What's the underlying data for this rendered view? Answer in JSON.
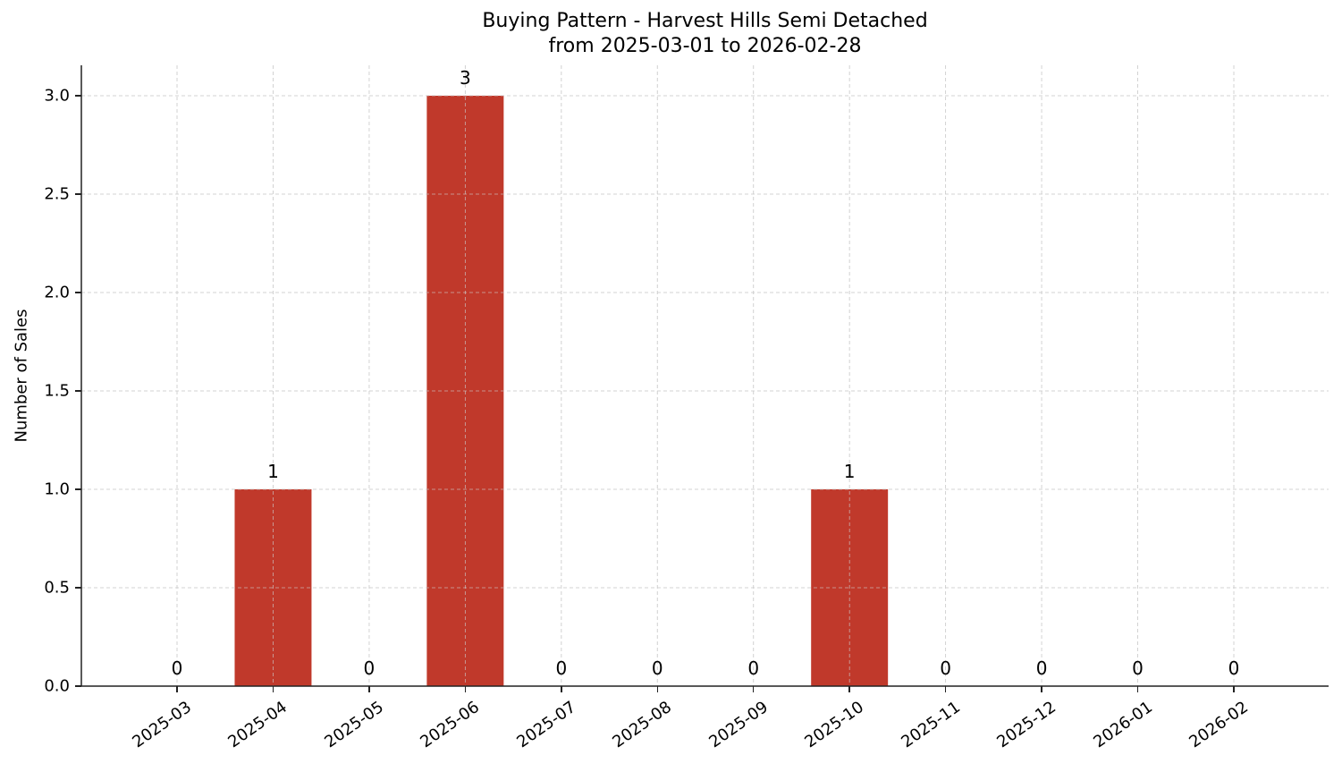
{
  "chart_data": {
    "type": "bar",
    "title": "Buying Pattern - Harvest Hills Semi Detached",
    "subtitle": "from 2025-03-01 to 2026-02-28",
    "xlabel": "",
    "ylabel": "Number of Sales",
    "categories": [
      "2025-03",
      "2025-04",
      "2025-05",
      "2025-06",
      "2025-07",
      "2025-08",
      "2025-09",
      "2025-10",
      "2025-11",
      "2025-12",
      "2026-01",
      "2026-02"
    ],
    "values": [
      0,
      1,
      0,
      3,
      0,
      0,
      0,
      1,
      0,
      0,
      0,
      0
    ],
    "data_labels": [
      "0",
      "1",
      "0",
      "3",
      "0",
      "0",
      "0",
      "1",
      "0",
      "0",
      "0",
      "0"
    ],
    "ylim": [
      0,
      3.15
    ],
    "yticks": [
      "0.0",
      "0.5",
      "1.0",
      "1.5",
      "2.0",
      "2.5",
      "3.0"
    ],
    "ytick_values": [
      0,
      0.5,
      1.0,
      1.5,
      2.0,
      2.5,
      3.0
    ],
    "grid": true,
    "legend": null,
    "bar_color": "#c0392b"
  }
}
